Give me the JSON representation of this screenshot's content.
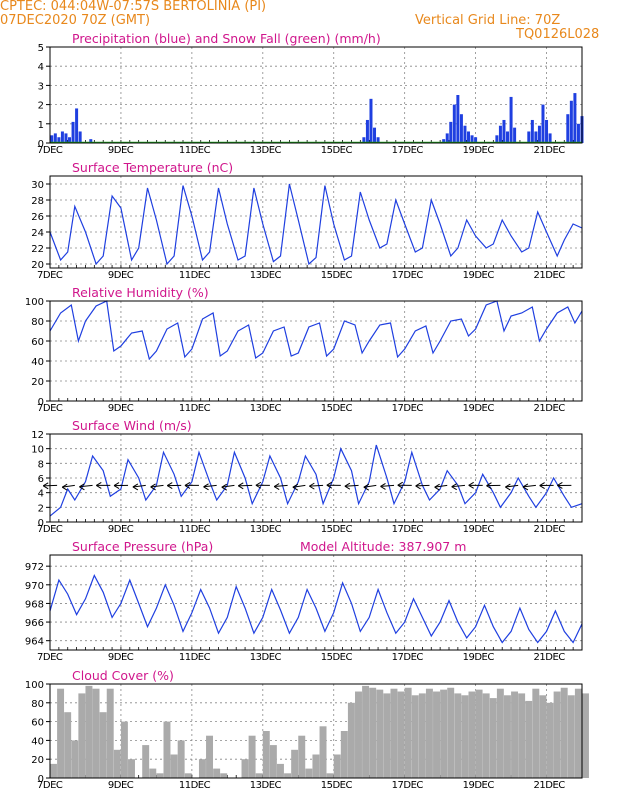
{
  "header": {
    "line1": "CPTEC:   044:04W-07:57S   BERTOLINIA (PI)",
    "line2": "07DEC2020 70Z (GMT)",
    "grid_note": "Vertical Grid Line: 70Z",
    "code": "TQ0126L028"
  },
  "colors": {
    "header": "#e8881c",
    "title": "#d0168c",
    "line": "#1f3fe0",
    "snow": "#22aa22",
    "cloud": "#aaaaaa"
  },
  "x_ticks": [
    "7DEC",
    "9DEC",
    "11DEC",
    "13DEC",
    "15DEC",
    "17DEC",
    "19DEC",
    "21DEC"
  ],
  "x_range_days": [
    7,
    22
  ],
  "chart_data": [
    {
      "type": "bar",
      "title": "Precipitation (blue) and Snow Fall (green) (mm/h)",
      "ylim": [
        0,
        5
      ],
      "yticks": [
        0,
        1,
        2,
        3,
        4,
        5
      ],
      "series": [
        {
          "name": "Precipitation",
          "color": "#1f3fe0",
          "x": [
            7.05,
            7.15,
            7.25,
            7.35,
            7.45,
            7.55,
            7.65,
            7.75,
            7.85,
            8.15,
            15.85,
            15.95,
            16.05,
            16.15,
            16.25,
            18.1,
            18.2,
            18.3,
            18.4,
            18.5,
            18.6,
            18.7,
            18.8,
            18.9,
            19.0,
            19.6,
            19.7,
            19.8,
            19.9,
            20.0,
            20.1,
            20.5,
            20.6,
            20.7,
            20.8,
            20.9,
            21.0,
            21.1,
            21.6,
            21.7,
            21.8,
            21.9,
            22.0
          ],
          "values": [
            0.4,
            0.5,
            0.3,
            0.6,
            0.5,
            0.3,
            1.1,
            1.8,
            0.6,
            0.2,
            0.3,
            1.2,
            2.3,
            0.8,
            0.3,
            0.2,
            0.5,
            1.1,
            2.0,
            2.5,
            1.5,
            0.9,
            0.6,
            0.4,
            0.3,
            0.4,
            0.9,
            1.2,
            0.6,
            2.4,
            0.8,
            0.6,
            1.2,
            0.6,
            0.9,
            2.0,
            1.2,
            0.5,
            1.5,
            2.2,
            2.6,
            1.0,
            1.4
          ]
        },
        {
          "name": "Snow Fall",
          "color": "#22aa22",
          "x": [],
          "values": []
        }
      ]
    },
    {
      "type": "line",
      "title": "Surface Temperature (nC)",
      "ylim": [
        19.5,
        31
      ],
      "yticks": [
        20,
        22,
        24,
        26,
        28,
        30
      ],
      "series": [
        {
          "name": "Temperature",
          "x": [
            7.0,
            7.3,
            7.5,
            7.7,
            8.0,
            8.3,
            8.5,
            8.75,
            9.0,
            9.3,
            9.5,
            9.75,
            10.0,
            10.3,
            10.5,
            10.75,
            11.0,
            11.3,
            11.5,
            11.75,
            12.0,
            12.3,
            12.5,
            12.75,
            13.0,
            13.3,
            13.5,
            13.75,
            14.0,
            14.3,
            14.5,
            14.75,
            15.0,
            15.3,
            15.5,
            15.75,
            16.0,
            16.3,
            16.5,
            16.75,
            17.0,
            17.3,
            17.5,
            17.75,
            18.0,
            18.3,
            18.5,
            18.75,
            19.0,
            19.3,
            19.5,
            19.75,
            20.0,
            20.3,
            20.5,
            20.75,
            21.0,
            21.3,
            21.5,
            21.75,
            22.0
          ],
          "values": [
            24.0,
            20.5,
            21.5,
            27.2,
            24.0,
            20.0,
            21.0,
            28.5,
            27.0,
            20.5,
            22.0,
            29.5,
            25.5,
            20.0,
            21.0,
            29.8,
            26.0,
            20.5,
            21.5,
            29.5,
            25.0,
            20.5,
            21.0,
            29.5,
            25.0,
            20.3,
            21.0,
            30.0,
            25.5,
            20.0,
            20.8,
            29.8,
            25.0,
            20.5,
            21.0,
            29.0,
            25.5,
            22.0,
            22.5,
            28.0,
            25.0,
            21.5,
            22.0,
            28.0,
            25.0,
            21.0,
            22.0,
            25.5,
            23.5,
            22.0,
            22.5,
            25.5,
            23.5,
            21.5,
            22.0,
            26.5,
            24.0,
            21.0,
            23.0,
            25.0,
            24.5
          ]
        }
      ]
    },
    {
      "type": "line",
      "title": "Relative Humidity (%)",
      "ylim": [
        0,
        100
      ],
      "yticks": [
        0,
        20,
        40,
        60,
        80,
        100
      ],
      "series": [
        {
          "name": "Humidity",
          "x": [
            7.0,
            7.3,
            7.6,
            7.8,
            8.0,
            8.3,
            8.6,
            8.8,
            9.0,
            9.3,
            9.6,
            9.8,
            10.0,
            10.3,
            10.6,
            10.8,
            11.0,
            11.3,
            11.6,
            11.8,
            12.0,
            12.3,
            12.6,
            12.8,
            13.0,
            13.3,
            13.6,
            13.8,
            14.0,
            14.3,
            14.6,
            14.8,
            15.0,
            15.3,
            15.6,
            15.8,
            16.0,
            16.3,
            16.6,
            16.8,
            17.0,
            17.3,
            17.6,
            17.8,
            18.0,
            18.3,
            18.6,
            18.8,
            19.0,
            19.3,
            19.6,
            19.8,
            20.0,
            20.3,
            20.6,
            20.8,
            21.0,
            21.3,
            21.6,
            21.8,
            22.0
          ],
          "values": [
            70,
            88,
            96,
            60,
            80,
            95,
            100,
            50,
            55,
            68,
            70,
            42,
            50,
            72,
            78,
            44,
            52,
            82,
            88,
            45,
            50,
            70,
            76,
            43,
            48,
            70,
            74,
            45,
            48,
            74,
            78,
            45,
            52,
            80,
            76,
            48,
            60,
            76,
            78,
            44,
            52,
            70,
            75,
            48,
            60,
            80,
            82,
            65,
            72,
            96,
            100,
            70,
            85,
            88,
            94,
            60,
            72,
            88,
            94,
            78,
            90
          ]
        }
      ]
    },
    {
      "type": "line",
      "title": "Surface Wind (m/s)",
      "ylim": [
        0,
        12
      ],
      "yticks": [
        0,
        2,
        4,
        6,
        8,
        10,
        12
      ],
      "series": [
        {
          "name": "Wind speed",
          "x": [
            7.0,
            7.3,
            7.5,
            7.7,
            8.0,
            8.2,
            8.5,
            8.7,
            9.0,
            9.2,
            9.5,
            9.7,
            10.0,
            10.2,
            10.5,
            10.7,
            11.0,
            11.2,
            11.5,
            11.7,
            12.0,
            12.2,
            12.5,
            12.7,
            13.0,
            13.2,
            13.5,
            13.7,
            14.0,
            14.2,
            14.5,
            14.7,
            15.0,
            15.2,
            15.5,
            15.7,
            16.0,
            16.2,
            16.5,
            16.7,
            17.0,
            17.2,
            17.5,
            17.7,
            18.0,
            18.2,
            18.5,
            18.7,
            19.0,
            19.2,
            19.5,
            19.7,
            20.0,
            20.2,
            20.5,
            20.7,
            21.0,
            21.2,
            21.5,
            21.7,
            22.0
          ],
          "values": [
            0.8,
            2.0,
            4.5,
            3.0,
            5.5,
            9.0,
            7.0,
            3.5,
            4.5,
            8.5,
            6.0,
            3.0,
            5.0,
            9.5,
            6.5,
            3.5,
            5.5,
            9.5,
            5.5,
            3.0,
            5.0,
            9.5,
            6.0,
            2.5,
            5.5,
            9.0,
            6.0,
            2.5,
            5.5,
            9.0,
            6.5,
            2.5,
            6.0,
            10.0,
            7.0,
            2.5,
            5.5,
            10.5,
            6.0,
            2.5,
            5.5,
            9.5,
            5.0,
            3.0,
            4.5,
            7.0,
            5.0,
            2.5,
            4.0,
            6.5,
            4.0,
            2.0,
            4.0,
            6.0,
            3.5,
            2.0,
            4.0,
            6.0,
            3.5,
            2.0,
            2.5
          ]
        }
      ]
    },
    {
      "type": "line",
      "title": "Surface Pressure (hPa)",
      "annotation": "Model Altitude: 387.907 m",
      "ylim": [
        963,
        973.2
      ],
      "yticks": [
        964,
        966,
        968,
        970,
        972
      ],
      "series": [
        {
          "name": "Pressure",
          "x": [
            7.0,
            7.25,
            7.5,
            7.75,
            8.0,
            8.25,
            8.5,
            8.75,
            9.0,
            9.25,
            9.5,
            9.75,
            10.0,
            10.25,
            10.5,
            10.75,
            11.0,
            11.25,
            11.5,
            11.75,
            12.0,
            12.25,
            12.5,
            12.75,
            13.0,
            13.25,
            13.5,
            13.75,
            14.0,
            14.25,
            14.5,
            14.75,
            15.0,
            15.25,
            15.5,
            15.75,
            16.0,
            16.25,
            16.5,
            16.75,
            17.0,
            17.25,
            17.5,
            17.75,
            18.0,
            18.25,
            18.5,
            18.75,
            19.0,
            19.25,
            19.5,
            19.75,
            20.0,
            20.25,
            20.5,
            20.75,
            21.0,
            21.25,
            21.5,
            21.75,
            22.0
          ],
          "values": [
            967.2,
            970.5,
            969.0,
            966.8,
            968.5,
            971.0,
            969.2,
            966.5,
            968.0,
            970.5,
            968.0,
            965.5,
            967.5,
            970.0,
            967.8,
            965.0,
            967.0,
            969.5,
            967.5,
            964.8,
            966.5,
            969.8,
            967.5,
            964.8,
            966.5,
            969.5,
            967.3,
            964.8,
            966.5,
            969.5,
            967.5,
            965.0,
            967.0,
            970.2,
            968.0,
            965.0,
            966.5,
            969.5,
            967.0,
            964.8,
            966.0,
            968.5,
            966.5,
            964.5,
            966.0,
            968.3,
            966.0,
            964.3,
            965.5,
            967.8,
            965.5,
            963.8,
            965.0,
            967.5,
            965.2,
            963.8,
            965.0,
            967.2,
            965.0,
            963.8,
            965.8
          ]
        }
      ]
    },
    {
      "type": "area",
      "title": "Cloud Cover (%)",
      "ylim": [
        0,
        100
      ],
      "yticks": [
        0,
        20,
        40,
        60,
        80,
        100
      ],
      "series": [
        {
          "name": "Cloud cover",
          "x": [
            7.0,
            7.2,
            7.4,
            7.6,
            7.8,
            8.0,
            8.2,
            8.4,
            8.6,
            8.8,
            9.0,
            9.2,
            9.4,
            9.6,
            9.8,
            10.0,
            10.2,
            10.4,
            10.6,
            10.8,
            11.0,
            11.2,
            11.4,
            11.6,
            11.8,
            12.0,
            12.2,
            12.4,
            12.6,
            12.8,
            13.0,
            13.2,
            13.4,
            13.6,
            13.8,
            14.0,
            14.2,
            14.4,
            14.6,
            14.8,
            15.0,
            15.2,
            15.4,
            15.6,
            15.8,
            16.0,
            16.2,
            16.4,
            16.6,
            16.8,
            17.0,
            17.2,
            17.4,
            17.6,
            17.8,
            18.0,
            18.2,
            18.4,
            18.6,
            18.8,
            19.0,
            19.2,
            19.4,
            19.6,
            19.8,
            20.0,
            20.2,
            20.4,
            20.6,
            20.8,
            21.0,
            21.2,
            21.4,
            21.6,
            21.8,
            22.0
          ],
          "values": [
            15,
            95,
            70,
            40,
            90,
            98,
            95,
            70,
            95,
            30,
            60,
            20,
            0,
            35,
            10,
            5,
            60,
            25,
            40,
            5,
            0,
            20,
            45,
            10,
            5,
            0,
            0,
            20,
            45,
            5,
            50,
            35,
            15,
            5,
            30,
            45,
            10,
            25,
            55,
            5,
            25,
            50,
            80,
            92,
            98,
            96,
            94,
            90,
            95,
            92,
            96,
            88,
            90,
            95,
            92,
            94,
            96,
            90,
            88,
            92,
            94,
            90,
            85,
            95,
            88,
            92,
            90,
            82,
            95,
            88,
            80,
            92,
            96,
            88,
            95,
            90
          ]
        }
      ]
    }
  ]
}
